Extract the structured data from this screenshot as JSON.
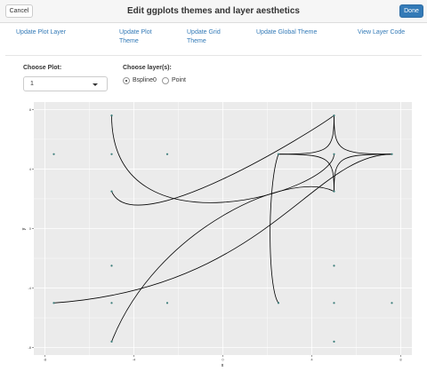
{
  "header": {
    "title": "Edit ggplots themes and layer aesthetics",
    "cancel_label": "Cancel",
    "done_label": "Done"
  },
  "tabs": [
    {
      "line1": "Update Plot Layer",
      "line2": ""
    },
    {
      "line1": "Update Plot",
      "line2": "Theme"
    },
    {
      "line1": "Update Grid",
      "line2": "Theme"
    },
    {
      "line1": "Update Global Theme",
      "line2": ""
    },
    {
      "line1": "View Layer Code",
      "line2": ""
    }
  ],
  "controls": {
    "choose_plot_label": "Choose Plot:",
    "plot_selected": "1",
    "choose_layer_label": "Choose layer(s):",
    "layers": [
      {
        "label": "Bspline0",
        "checked": true
      },
      {
        "label": "Point",
        "checked": false
      }
    ]
  },
  "colors": {
    "panel_bg": "#ebebeb",
    "grid_major": "#ffffff",
    "point": "#3b7d7a",
    "curve": "#000000",
    "accent": "#337ab7"
  },
  "chart_data": {
    "type": "line",
    "xlabel": "x",
    "ylabel": "y",
    "xlim": [
      -8.5,
      8.5
    ],
    "ylim": [
      -8.5,
      8.5
    ],
    "x_ticks": [
      "-8",
      "-4",
      "0",
      "4",
      "8"
    ],
    "y_ticks": [
      "8",
      "4",
      "0",
      "-4",
      "-8"
    ],
    "grid": true,
    "legend": "none",
    "points": [
      [
        -7.6,
        5
      ],
      [
        -5,
        5
      ],
      [
        -2.5,
        5
      ],
      [
        -5,
        7.6
      ],
      [
        -5,
        2.5
      ],
      [
        2.5,
        5
      ],
      [
        5,
        5
      ],
      [
        7.6,
        5
      ],
      [
        5,
        7.6
      ],
      [
        5,
        2.5
      ],
      [
        -7.6,
        -5
      ],
      [
        -5,
        -5
      ],
      [
        -2.5,
        -5
      ],
      [
        -5,
        -2.5
      ],
      [
        -5,
        -7.6
      ],
      [
        2.5,
        -5
      ],
      [
        5,
        -5
      ],
      [
        7.6,
        -5
      ],
      [
        5,
        -2.5
      ],
      [
        5,
        -7.6
      ]
    ],
    "series": [
      {
        "control": [
          [
            -5,
            7.6
          ],
          [
            -5,
            -2
          ],
          [
            5,
            2.5
          ],
          [
            5,
            5
          ]
        ]
      },
      {
        "control": [
          [
            -5,
            2.5
          ],
          [
            -4,
            -1
          ],
          [
            4,
            6.5
          ],
          [
            5,
            7.6
          ]
        ]
      },
      {
        "control": [
          [
            -7.6,
            -5
          ],
          [
            2,
            -4
          ],
          [
            4,
            5
          ],
          [
            7.6,
            5
          ]
        ]
      },
      {
        "control": [
          [
            -5,
            -7.6
          ],
          [
            -3,
            0
          ],
          [
            3,
            4
          ],
          [
            5,
            2.5
          ]
        ]
      },
      {
        "control": [
          [
            2.5,
            5
          ],
          [
            2,
            3
          ],
          [
            2,
            -4
          ],
          [
            2.5,
            -5
          ]
        ]
      },
      {
        "control": [
          [
            5,
            7.6
          ],
          [
            5,
            5.2
          ],
          [
            5.2,
            5
          ],
          [
            7.6,
            5
          ]
        ]
      },
      {
        "control": [
          [
            7.6,
            5
          ],
          [
            5.2,
            5
          ],
          [
            5,
            4.8
          ],
          [
            5,
            2.5
          ]
        ]
      },
      {
        "control": [
          [
            5,
            2.5
          ],
          [
            5,
            4.8
          ],
          [
            4.8,
            5
          ],
          [
            2.5,
            5
          ]
        ]
      },
      {
        "control": [
          [
            2.5,
            5
          ],
          [
            4.8,
            5
          ],
          [
            5,
            5.2
          ],
          [
            5,
            7.6
          ]
        ]
      }
    ]
  }
}
